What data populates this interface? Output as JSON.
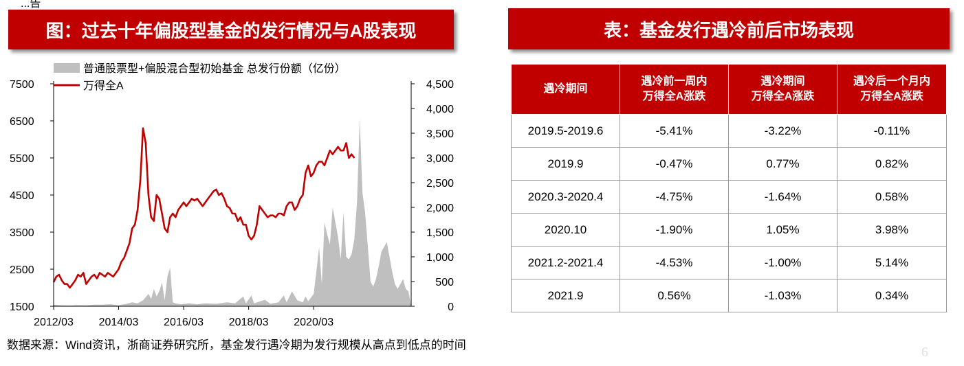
{
  "top_fragment": "...告",
  "left_title": "图：过去十年偏股型基金的发行情况与A股表现",
  "right_title": "表：基金发行遇冷前后市场表现",
  "source_text": "数据来源：Wind资讯，浙商证券研究所，基金发行遇冷期为发行规模从高点到低点的时间",
  "page_number": "6",
  "colors": {
    "accent": "#c00000",
    "area": "#bfbfbf",
    "line": "#c00000"
  },
  "table": {
    "headers": [
      [
        "遇冷期间"
      ],
      [
        "遇冷前一周内",
        "万得全A涨跌"
      ],
      [
        "遇冷期间",
        "万得全A涨跌"
      ],
      [
        "遇冷后一个月内",
        "万得全A涨跌"
      ]
    ],
    "rows": [
      [
        "2019.5-2019.6",
        "-5.41%",
        "-3.22%",
        "-0.11%"
      ],
      [
        "2019.9",
        "-0.47%",
        "0.77%",
        "0.82%"
      ],
      [
        "2020.3-2020.4",
        "-4.75%",
        "-1.64%",
        "0.58%"
      ],
      [
        "2020.10",
        "-1.90%",
        "1.05%",
        "3.98%"
      ],
      [
        "2021.2-2021.4",
        "-4.53%",
        "-1.00%",
        "5.14%"
      ],
      [
        "2021.9",
        "0.56%",
        "-1.03%",
        "0.34%"
      ]
    ]
  },
  "chart_data": {
    "type": "line",
    "title": "图：过去十年偏股型基金的发行情况与A股表现",
    "x_ticks": [
      "2012/03",
      "2014/03",
      "2016/03",
      "2018/03",
      "2020/03"
    ],
    "x_tick_index": [
      0,
      24,
      48,
      72,
      96
    ],
    "left_axis": {
      "ylim": [
        1500,
        7500
      ],
      "ticks": [
        "7500",
        "6500",
        "5500",
        "4500",
        "3500",
        "2500",
        "1500"
      ]
    },
    "right_axis": {
      "ylim": [
        0,
        4500
      ],
      "ticks": [
        "4,500",
        "4,000",
        "3,500",
        "3,000",
        "2,500",
        "2,000",
        "1,500",
        "1,000",
        "500",
        "0"
      ]
    },
    "series": [
      {
        "name": "普通股票型+偏股混合型初始基金 总发行份额（亿份）",
        "type": "area",
        "axis": "right",
        "points": [
          [
            0,
            30
          ],
          [
            3,
            20
          ],
          [
            6,
            15
          ],
          [
            9,
            25
          ],
          [
            12,
            20
          ],
          [
            15,
            30
          ],
          [
            18,
            30
          ],
          [
            21,
            40
          ],
          [
            24,
            20
          ],
          [
            27,
            50
          ],
          [
            29,
            80
          ],
          [
            31,
            60
          ],
          [
            33,
            120
          ],
          [
            35,
            250
          ],
          [
            36,
            150
          ],
          [
            37,
            350
          ],
          [
            38,
            200
          ],
          [
            39,
            300
          ],
          [
            40,
            480
          ],
          [
            41,
            120
          ],
          [
            42,
            600
          ],
          [
            43,
            780
          ],
          [
            44,
            80
          ],
          [
            45,
            60
          ],
          [
            47,
            40
          ],
          [
            50,
            60
          ],
          [
            53,
            40
          ],
          [
            56,
            60
          ],
          [
            60,
            50
          ],
          [
            64,
            80
          ],
          [
            67,
            60
          ],
          [
            70,
            200
          ],
          [
            71,
            60
          ],
          [
            73,
            220
          ],
          [
            74,
            60
          ],
          [
            78,
            130
          ],
          [
            80,
            50
          ],
          [
            83,
            80
          ],
          [
            85,
            220
          ],
          [
            86,
            80
          ],
          [
            88,
            300
          ],
          [
            90,
            120
          ],
          [
            92,
            80
          ],
          [
            93,
            200
          ],
          [
            94,
            100
          ],
          [
            96,
            250
          ],
          [
            97,
            700
          ],
          [
            98,
            1200
          ],
          [
            99,
            450
          ],
          [
            100,
            1700
          ],
          [
            101,
            1450
          ],
          [
            102,
            1250
          ],
          [
            103,
            2000
          ],
          [
            104,
            1700
          ],
          [
            105,
            1400
          ],
          [
            106,
            950
          ],
          [
            107,
            1900
          ],
          [
            108,
            1000
          ],
          [
            109,
            950
          ],
          [
            110,
            1050
          ],
          [
            111,
            1350
          ],
          [
            112,
            2100
          ],
          [
            113,
            3800
          ],
          [
            114,
            2300
          ],
          [
            115,
            1900
          ],
          [
            116,
            1200
          ],
          [
            117,
            500
          ],
          [
            118,
            400
          ],
          [
            119,
            550
          ],
          [
            120,
            800
          ],
          [
            121,
            1100
          ],
          [
            122,
            1200
          ],
          [
            123,
            1300
          ],
          [
            124,
            1000
          ],
          [
            125,
            700
          ],
          [
            126,
            450
          ],
          [
            127,
            350
          ],
          [
            128,
            450
          ],
          [
            129,
            550
          ],
          [
            130,
            350
          ],
          [
            131,
            300
          ],
          [
            132,
            0
          ]
        ]
      },
      {
        "name": "万得全A",
        "type": "line",
        "axis": "left",
        "points": [
          [
            0,
            2150
          ],
          [
            1,
            2300
          ],
          [
            2,
            2350
          ],
          [
            3,
            2200
          ],
          [
            4,
            2100
          ],
          [
            5,
            2100
          ],
          [
            6,
            2000
          ],
          [
            7,
            2100
          ],
          [
            8,
            2200
          ],
          [
            9,
            2350
          ],
          [
            10,
            2300
          ],
          [
            11,
            2400
          ],
          [
            12,
            2100
          ],
          [
            13,
            2200
          ],
          [
            14,
            2300
          ],
          [
            15,
            2350
          ],
          [
            16,
            2250
          ],
          [
            17,
            2400
          ],
          [
            18,
            2350
          ],
          [
            19,
            2300
          ],
          [
            20,
            2400
          ],
          [
            21,
            2350
          ],
          [
            22,
            2300
          ],
          [
            23,
            2400
          ],
          [
            24,
            2500
          ],
          [
            25,
            2700
          ],
          [
            26,
            2800
          ],
          [
            27,
            3000
          ],
          [
            28,
            3200
          ],
          [
            29,
            3600
          ],
          [
            30,
            3700
          ],
          [
            31,
            4100
          ],
          [
            32,
            4900
          ],
          [
            33,
            6300
          ],
          [
            34,
            5900
          ],
          [
            35,
            4500
          ],
          [
            36,
            3900
          ],
          [
            37,
            3800
          ],
          [
            38,
            4500
          ],
          [
            39,
            4400
          ],
          [
            40,
            4000
          ],
          [
            41,
            3600
          ],
          [
            42,
            3500
          ],
          [
            43,
            3900
          ],
          [
            44,
            4000
          ],
          [
            45,
            3900
          ],
          [
            46,
            4100
          ],
          [
            47,
            4200
          ],
          [
            48,
            4300
          ],
          [
            49,
            4200
          ],
          [
            50,
            4300
          ],
          [
            51,
            4400
          ],
          [
            52,
            4350
          ],
          [
            53,
            4400
          ],
          [
            54,
            4300
          ],
          [
            55,
            4200
          ],
          [
            56,
            4300
          ],
          [
            57,
            4400
          ],
          [
            58,
            4500
          ],
          [
            59,
            4600
          ],
          [
            60,
            4650
          ],
          [
            61,
            4500
          ],
          [
            62,
            4550
          ],
          [
            63,
            4400
          ],
          [
            64,
            4200
          ],
          [
            65,
            4150
          ],
          [
            66,
            4000
          ],
          [
            67,
            4000
          ],
          [
            68,
            3800
          ],
          [
            69,
            3900
          ],
          [
            70,
            3700
          ],
          [
            71,
            3700
          ],
          [
            72,
            3400
          ],
          [
            73,
            3300
          ],
          [
            74,
            3400
          ],
          [
            75,
            3700
          ],
          [
            76,
            4200
          ],
          [
            77,
            4100
          ],
          [
            78,
            4000
          ],
          [
            79,
            3900
          ],
          [
            80,
            3950
          ],
          [
            81,
            3950
          ],
          [
            82,
            3900
          ],
          [
            83,
            4000
          ],
          [
            84,
            4000
          ],
          [
            85,
            3950
          ],
          [
            86,
            4200
          ],
          [
            87,
            4300
          ],
          [
            88,
            4300
          ],
          [
            89,
            4100
          ],
          [
            90,
            4200
          ],
          [
            91,
            4400
          ],
          [
            92,
            4500
          ],
          [
            93,
            5100
          ],
          [
            94,
            5300
          ],
          [
            95,
            5000
          ],
          [
            96,
            5100
          ],
          [
            97,
            5300
          ],
          [
            98,
            5400
          ],
          [
            99,
            5400
          ],
          [
            100,
            5300
          ],
          [
            101,
            5500
          ],
          [
            102,
            5700
          ],
          [
            103,
            5600
          ],
          [
            104,
            5700
          ],
          [
            105,
            5800
          ],
          [
            106,
            5700
          ],
          [
            107,
            5700
          ],
          [
            108,
            5900
          ],
          [
            109,
            5500
          ],
          [
            110,
            5600
          ],
          [
            111,
            5500
          ]
        ]
      }
    ]
  }
}
